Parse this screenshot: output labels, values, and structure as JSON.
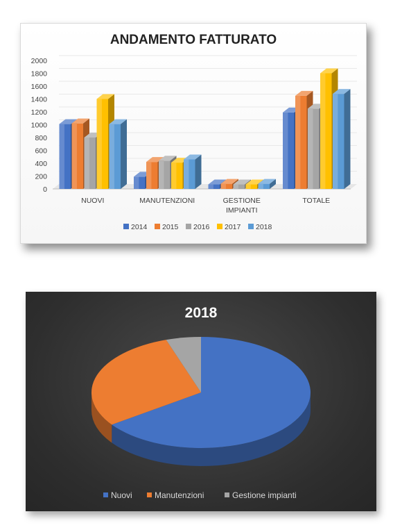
{
  "chart_data": [
    {
      "type": "bar",
      "title": "ANDAMENTO FATTURATO",
      "categories": [
        "NUOVI",
        "MANUTENZIONI",
        "GESTIONE IMPIANTI",
        "TOTALE"
      ],
      "category_lines": [
        [
          "NUOVI"
        ],
        [
          "MANUTENZIONI"
        ],
        [
          "GESTIONE",
          "IMPIANTI"
        ],
        [
          "TOTALE"
        ]
      ],
      "series": [
        {
          "name": "2014",
          "color": "#4472c4",
          "values": [
            1010,
            190,
            70,
            1190
          ]
        },
        {
          "name": "2015",
          "color": "#ed7d31",
          "values": [
            1020,
            420,
            80,
            1450
          ]
        },
        {
          "name": "2016",
          "color": "#a5a5a5",
          "values": [
            800,
            440,
            70,
            1250
          ]
        },
        {
          "name": "2017",
          "color": "#ffc000",
          "values": [
            1400,
            410,
            70,
            1800
          ]
        },
        {
          "name": "2018",
          "color": "#5b9bd5",
          "values": [
            1010,
            460,
            80,
            1480
          ]
        }
      ],
      "ylim": [
        0,
        2000
      ],
      "yticks": [
        "0",
        "200",
        "400",
        "600",
        "800",
        "1000",
        "1200",
        "1400",
        "1600",
        "1800",
        "2000"
      ],
      "legend_position": "bottom"
    },
    {
      "type": "pie",
      "title": "2018",
      "categories": [
        "Nuovi",
        "Manutenzioni",
        "Gestione impianti"
      ],
      "values": [
        1010,
        460,
        80
      ],
      "colors": [
        "#4472c4",
        "#ed7d31",
        "#a5a5a5"
      ],
      "legend_position": "bottom"
    }
  ]
}
